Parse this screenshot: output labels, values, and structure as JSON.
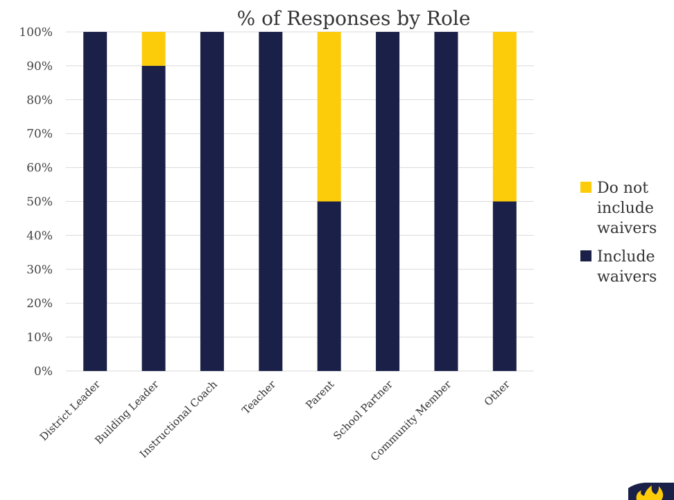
{
  "chart_data": {
    "type": "bar",
    "stacked": true,
    "title": "% of Responses by Role",
    "xlabel": "",
    "ylabel": "",
    "ylim": [
      0,
      100
    ],
    "y_tick_labels": [
      "0%",
      "10%",
      "20%",
      "30%",
      "40%",
      "50%",
      "60%",
      "70%",
      "80%",
      "90%",
      "100%"
    ],
    "categories": [
      "District Leader",
      "Building Leader",
      "Instructional Coach",
      "Teacher",
      "Parent",
      "School Partner",
      "Community Member",
      "Other"
    ],
    "series": [
      {
        "name": "Include waivers",
        "legend_lines": [
          "Include",
          "waivers"
        ],
        "color": "#1a2047",
        "values": [
          100,
          90,
          100,
          100,
          50,
          100,
          100,
          50
        ]
      },
      {
        "name": "Do not include waivers",
        "legend_lines": [
          "Do not",
          "include",
          "waivers"
        ],
        "color": "#fccb0a",
        "values": [
          0,
          10,
          0,
          0,
          50,
          0,
          0,
          50
        ]
      }
    ],
    "grid": true,
    "legend": "right"
  },
  "logo": {
    "icon": "flame-logo-icon",
    "color": "#fccb0a",
    "bg": "#1a2047"
  }
}
